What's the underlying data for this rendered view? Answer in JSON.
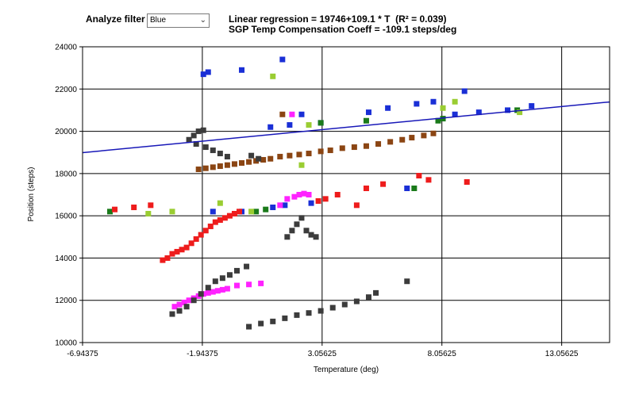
{
  "controls": {
    "analyze_filter_label": "Analyze filter",
    "filter_value": "Blue"
  },
  "header": {
    "regression_text": "Linear regression = 19746+109.1 * T  (R² = 0.039)",
    "compensation_text": "SGP Temp Compensation Coeff = -109.1 steps/deg"
  },
  "colors": {
    "regression_line": "#1818b8",
    "black_series": "#3c3c3c",
    "brown_series": "#8b4513",
    "blue_series": "#1a2fd6",
    "red_series": "#ee1c1c",
    "magenta_series": "#ff22ff",
    "green_series": "#1a7a1a",
    "lightgreen_series": "#9acd32"
  },
  "chart_data": {
    "type": "scatter",
    "xlabel": "Temperature (deg)",
    "ylabel": "Position (steps)",
    "xlim": [
      -6.94375,
      15.05625
    ],
    "ylim": [
      10000,
      24000
    ],
    "x_ticks": [
      -6.94375,
      -1.94375,
      3.05625,
      8.05625,
      13.05625
    ],
    "x_tick_labels": [
      "-6.94375",
      "-1.94375",
      "3.05625",
      "8.05625",
      "13.05625"
    ],
    "y_ticks": [
      10000,
      12000,
      14000,
      16000,
      18000,
      20000,
      22000,
      24000
    ],
    "grid": true,
    "regression": {
      "intercept": 19746,
      "slope": 109.1
    },
    "series": [
      {
        "color": "blue_series",
        "points": [
          [
            -1.9,
            22700
          ],
          [
            -1.7,
            22800
          ],
          [
            -0.3,
            22900
          ],
          [
            1.4,
            23400
          ],
          [
            -1.5,
            16200
          ],
          [
            -0.3,
            16200
          ],
          [
            1.0,
            16400
          ],
          [
            1.5,
            16500
          ],
          [
            0.9,
            20200
          ],
          [
            1.7,
            20300
          ],
          [
            2.2,
            20800
          ],
          [
            3.0,
            20400
          ],
          [
            5.0,
            20900
          ],
          [
            5.8,
            21100
          ],
          [
            7.0,
            21300
          ],
          [
            7.7,
            21400
          ],
          [
            8.6,
            20800
          ],
          [
            9.0,
            21900
          ],
          [
            9.6,
            20900
          ],
          [
            10.8,
            21000
          ],
          [
            11.8,
            21200
          ],
          [
            2.6,
            16600
          ],
          [
            6.6,
            17300
          ]
        ]
      },
      {
        "color": "green_series",
        "points": [
          [
            -5.8,
            16200
          ],
          [
            0.3,
            16200
          ],
          [
            0.7,
            16300
          ],
          [
            3.0,
            20400
          ],
          [
            4.9,
            20500
          ],
          [
            7.9,
            20500
          ],
          [
            8.1,
            20600
          ],
          [
            11.2,
            21000
          ],
          [
            6.9,
            17300
          ]
        ]
      },
      {
        "color": "lightgreen_series",
        "points": [
          [
            -4.2,
            16100
          ],
          [
            -3.2,
            16200
          ],
          [
            -1.2,
            16600
          ],
          [
            0.1,
            16200
          ],
          [
            1.0,
            22600
          ],
          [
            2.2,
            18400
          ],
          [
            2.5,
            20300
          ],
          [
            8.1,
            21100
          ],
          [
            8.6,
            21400
          ],
          [
            11.3,
            20900
          ]
        ]
      },
      {
        "color": "red_series",
        "points": [
          [
            -5.6,
            16300
          ],
          [
            -4.8,
            16400
          ],
          [
            -4.1,
            16500
          ],
          [
            -3.6,
            13900
          ],
          [
            -3.4,
            14000
          ],
          [
            -3.2,
            14200
          ],
          [
            -3.0,
            14300
          ],
          [
            -2.8,
            14400
          ],
          [
            -2.6,
            14500
          ],
          [
            -2.4,
            14700
          ],
          [
            -2.2,
            14900
          ],
          [
            -2.0,
            15100
          ],
          [
            -1.8,
            15300
          ],
          [
            -1.6,
            15500
          ],
          [
            -1.4,
            15700
          ],
          [
            -1.2,
            15800
          ],
          [
            -1.0,
            15900
          ],
          [
            -0.8,
            16000
          ],
          [
            -0.6,
            16100
          ],
          [
            -0.4,
            16200
          ],
          [
            3.7,
            17000
          ],
          [
            4.5,
            16500
          ],
          [
            4.9,
            17300
          ],
          [
            5.6,
            17500
          ],
          [
            7.1,
            17900
          ],
          [
            7.5,
            17700
          ],
          [
            9.1,
            17600
          ],
          [
            2.9,
            16700
          ],
          [
            3.2,
            16800
          ]
        ]
      },
      {
        "color": "magenta_series",
        "points": [
          [
            -3.1,
            11700
          ],
          [
            -2.9,
            11800
          ],
          [
            -2.7,
            11900
          ],
          [
            -2.5,
            12000
          ],
          [
            -2.3,
            12100
          ],
          [
            -2.1,
            12200
          ],
          [
            -1.9,
            12300
          ],
          [
            -1.7,
            12350
          ],
          [
            -1.5,
            12400
          ],
          [
            -1.3,
            12450
          ],
          [
            -1.1,
            12500
          ],
          [
            -0.9,
            12550
          ],
          [
            -0.5,
            12700
          ],
          [
            0.0,
            12750
          ],
          [
            0.5,
            12800
          ],
          [
            1.3,
            16500
          ],
          [
            1.6,
            16800
          ],
          [
            1.9,
            16900
          ],
          [
            2.1,
            17000
          ],
          [
            2.3,
            17050
          ],
          [
            2.5,
            17000
          ],
          [
            1.8,
            20800
          ]
        ]
      },
      {
        "color": "brown_series",
        "points": [
          [
            -2.1,
            18200
          ],
          [
            -1.8,
            18250
          ],
          [
            -1.5,
            18300
          ],
          [
            -1.2,
            18350
          ],
          [
            -0.9,
            18400
          ],
          [
            -0.6,
            18450
          ],
          [
            -0.3,
            18500
          ],
          [
            0.0,
            18550
          ],
          [
            0.3,
            18600
          ],
          [
            0.6,
            18650
          ],
          [
            0.9,
            18700
          ],
          [
            1.3,
            18800
          ],
          [
            1.7,
            18850
          ],
          [
            2.1,
            18900
          ],
          [
            2.5,
            18950
          ],
          [
            3.0,
            19050
          ],
          [
            3.4,
            19100
          ],
          [
            3.9,
            19200
          ],
          [
            4.4,
            19250
          ],
          [
            4.9,
            19300
          ],
          [
            5.4,
            19400
          ],
          [
            5.9,
            19500
          ],
          [
            6.4,
            19600
          ],
          [
            6.8,
            19700
          ],
          [
            7.3,
            19800
          ],
          [
            7.7,
            19900
          ],
          [
            1.4,
            20800
          ]
        ]
      },
      {
        "color": "black_series",
        "points": [
          [
            -3.2,
            11350
          ],
          [
            -2.9,
            11500
          ],
          [
            -2.6,
            11700
          ],
          [
            -2.3,
            12000
          ],
          [
            -2.0,
            12300
          ],
          [
            -1.7,
            12600
          ],
          [
            -1.4,
            12900
          ],
          [
            -1.1,
            13050
          ],
          [
            -0.8,
            13200
          ],
          [
            -0.5,
            13400
          ],
          [
            -0.1,
            13600
          ],
          [
            0.0,
            10750
          ],
          [
            0.5,
            10900
          ],
          [
            1.0,
            11000
          ],
          [
            1.5,
            11150
          ],
          [
            2.0,
            11300
          ],
          [
            2.5,
            11400
          ],
          [
            3.0,
            11500
          ],
          [
            3.5,
            11650
          ],
          [
            4.0,
            11800
          ],
          [
            4.5,
            11950
          ],
          [
            5.0,
            12150
          ],
          [
            5.3,
            12350
          ],
          [
            6.6,
            12900
          ],
          [
            -2.5,
            19600
          ],
          [
            -2.3,
            19800
          ],
          [
            -2.1,
            20000
          ],
          [
            -1.9,
            20050
          ],
          [
            -2.2,
            19400
          ],
          [
            -1.8,
            19250
          ],
          [
            -1.5,
            19100
          ],
          [
            -1.2,
            18950
          ],
          [
            -0.9,
            18800
          ],
          [
            0.1,
            18850
          ],
          [
            0.4,
            18700
          ],
          [
            1.6,
            15000
          ],
          [
            1.8,
            15300
          ],
          [
            2.0,
            15600
          ],
          [
            2.2,
            15900
          ],
          [
            2.4,
            15300
          ],
          [
            2.6,
            15100
          ],
          [
            2.8,
            15000
          ]
        ]
      }
    ]
  }
}
